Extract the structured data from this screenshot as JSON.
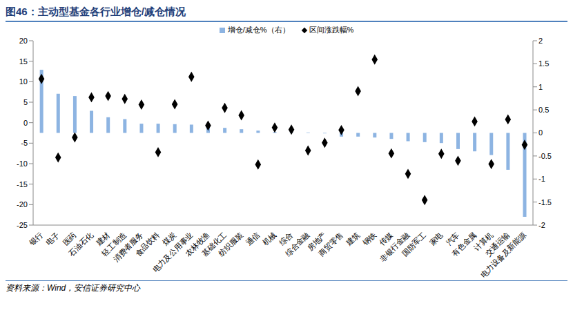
{
  "chart_data": {
    "type": "bar",
    "title": "图46：主动型基金各行业增仓/减仓情况",
    "annotations": [
      "资料来源：Wind，安信证券研究中心"
    ],
    "categories": [
      "银行",
      "电子",
      "医药",
      "石油石化",
      "建材",
      "轻工制造",
      "消费者服务",
      "食品饮料",
      "煤炭",
      "电力及公用事业",
      "农林牧渔",
      "基础化工",
      "纺织服装",
      "通信",
      "机械",
      "综合",
      "综合金融",
      "房地产",
      "商贸零售",
      "建筑",
      "钢铁",
      "传媒",
      "非银行金融",
      "国防军工",
      "家电",
      "汽车",
      "有色金属",
      "计算机",
      "交通运输",
      "电力设备及新能源"
    ],
    "series": [
      {
        "name": "增仓/减仓%（右）",
        "type": "bar",
        "axis": "y2",
        "color": "#8DB4E2",
        "values": [
          1.37,
          0.85,
          0.8,
          0.48,
          0.34,
          0.3,
          0.2,
          0.2,
          0.19,
          0.18,
          0.16,
          0.11,
          0.08,
          0.05,
          0.02,
          0.01,
          0.01,
          -0.01,
          -0.08,
          -0.08,
          -0.1,
          -0.13,
          -0.18,
          -0.2,
          -0.22,
          -0.35,
          -0.4,
          -0.48,
          -0.8,
          -1.82
        ]
      },
      {
        "name": "区间涨跌幅%",
        "type": "scatter",
        "marker": "diamond",
        "color": "#000000",
        "values": [
          10.7,
          -8.5,
          -3.6,
          6.2,
          6.5,
          5.8,
          4.4,
          -7.2,
          4.5,
          11.2,
          -0.7,
          3.6,
          1.8,
          -10.2,
          -1.2,
          -1.7,
          -6.8,
          -4.9,
          -1.8,
          7.7,
          15.4,
          -7.5,
          -12.5,
          -18.9,
          -7.6,
          -9.3,
          0.3,
          -10.1,
          0.8,
          -5.4
        ]
      }
    ],
    "ylim": [
      -25,
      20
    ],
    "yticks": [
      -25,
      -20,
      -15,
      -10,
      -5,
      0,
      5,
      10,
      15,
      20
    ],
    "y2lim": [
      -2,
      2
    ],
    "y2ticks": [
      -2,
      -1.5,
      -1,
      -0.5,
      0,
      0.5,
      1,
      1.5,
      2
    ],
    "legend": "top",
    "grid": false
  }
}
